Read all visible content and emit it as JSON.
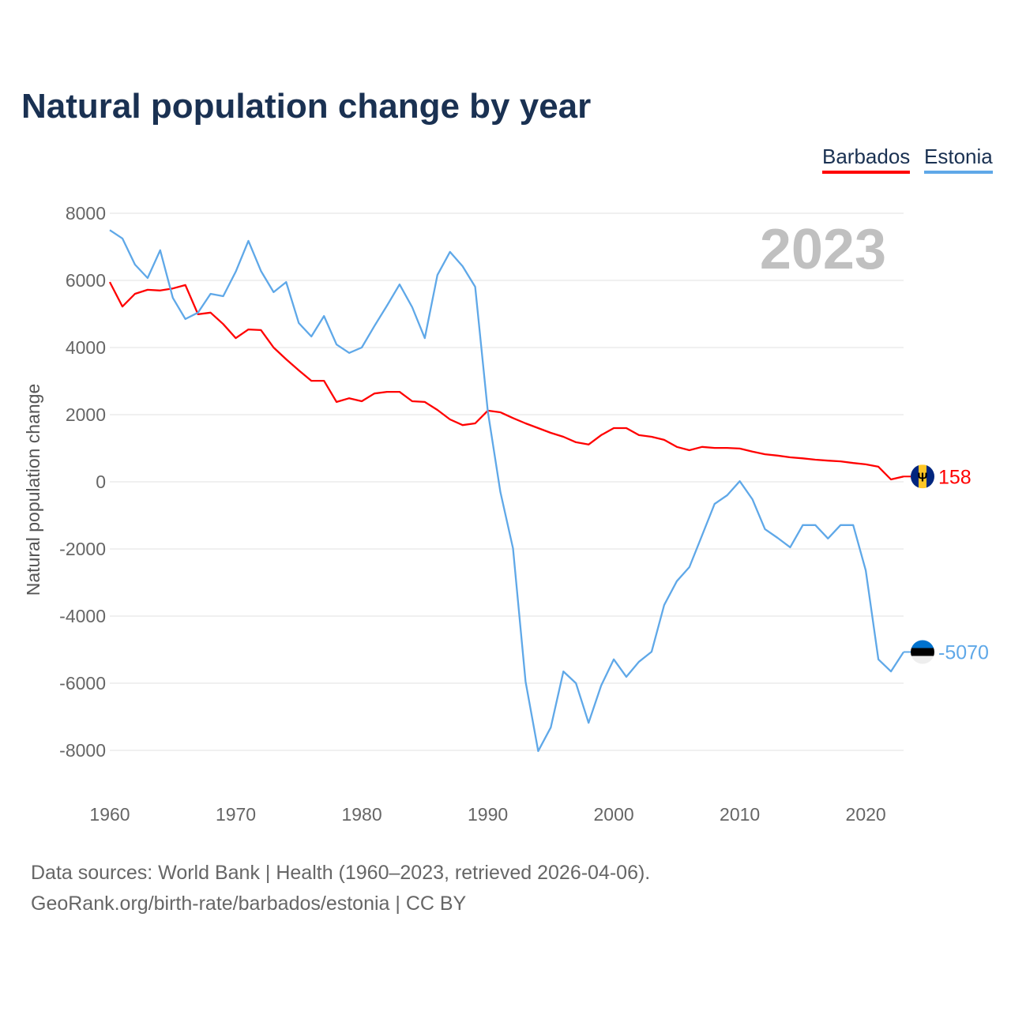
{
  "chart_data": {
    "type": "line",
    "title": "Natural population change by year",
    "xlabel": "",
    "ylabel": "Natural population change",
    "xlim": [
      1960,
      2023
    ],
    "ylim": [
      -8000,
      8000
    ],
    "x_ticks": [
      1960,
      1970,
      1980,
      1990,
      2000,
      2010,
      2020
    ],
    "y_ticks": [
      8000,
      6000,
      4000,
      2000,
      0,
      -2000,
      -4000,
      -6000,
      -8000
    ],
    "grid": true,
    "legend_position": "top-right",
    "year_label": "2023",
    "x": [
      1960,
      1961,
      1962,
      1963,
      1964,
      1965,
      1966,
      1967,
      1968,
      1969,
      1970,
      1971,
      1972,
      1973,
      1974,
      1975,
      1976,
      1977,
      1978,
      1979,
      1980,
      1981,
      1982,
      1983,
      1984,
      1985,
      1986,
      1987,
      1988,
      1989,
      1990,
      1991,
      1992,
      1993,
      1994,
      1995,
      1996,
      1997,
      1998,
      1999,
      2000,
      2001,
      2002,
      2003,
      2004,
      2005,
      2006,
      2007,
      2008,
      2009,
      2010,
      2011,
      2012,
      2013,
      2014,
      2015,
      2016,
      2017,
      2018,
      2019,
      2020,
      2021,
      2022,
      2023
    ],
    "series": [
      {
        "name": "Barbados",
        "color": "#ff0000",
        "end_label": "158",
        "flag": "barbados-flag",
        "values": [
          5950,
          5220,
          5600,
          5720,
          5700,
          5760,
          5860,
          4990,
          5040,
          4700,
          4280,
          4540,
          4520,
          4000,
          3650,
          3320,
          3010,
          3010,
          2380,
          2490,
          2400,
          2630,
          2680,
          2680,
          2400,
          2380,
          2140,
          1860,
          1690,
          1740,
          2120,
          2070,
          1900,
          1740,
          1600,
          1460,
          1340,
          1180,
          1110,
          1390,
          1600,
          1600,
          1390,
          1340,
          1250,
          1040,
          940,
          1040,
          1010,
          1010,
          990,
          900,
          820,
          780,
          730,
          700,
          660,
          630,
          610,
          560,
          520,
          450,
          70,
          158
        ]
      },
      {
        "name": "Estonia",
        "color": "#5fa8e8",
        "end_label": "-5070",
        "flag": "estonia-flag",
        "values": [
          7500,
          7250,
          6470,
          6070,
          6900,
          5480,
          4850,
          5040,
          5600,
          5530,
          6260,
          7180,
          6280,
          5650,
          5950,
          4730,
          4330,
          4940,
          4090,
          3840,
          4000,
          4640,
          5250,
          5880,
          5200,
          4280,
          6160,
          6850,
          6420,
          5810,
          2100,
          -300,
          -1980,
          -5950,
          -8020,
          -7320,
          -5650,
          -6000,
          -7180,
          -6070,
          -5290,
          -5810,
          -5360,
          -5060,
          -3670,
          -2960,
          -2540,
          -1600,
          -660,
          -400,
          20,
          -520,
          -1410,
          -1670,
          -1950,
          -1290,
          -1290,
          -1690,
          -1290,
          -1290,
          -2640,
          -5290,
          -5650,
          -5070
        ]
      }
    ]
  },
  "footer": {
    "source_line": "Data sources: World Bank | Health (1960–2023, retrieved 2026-04-06).",
    "url_line": "GeoRank.org/birth-rate/barbados/estonia | CC BY"
  }
}
